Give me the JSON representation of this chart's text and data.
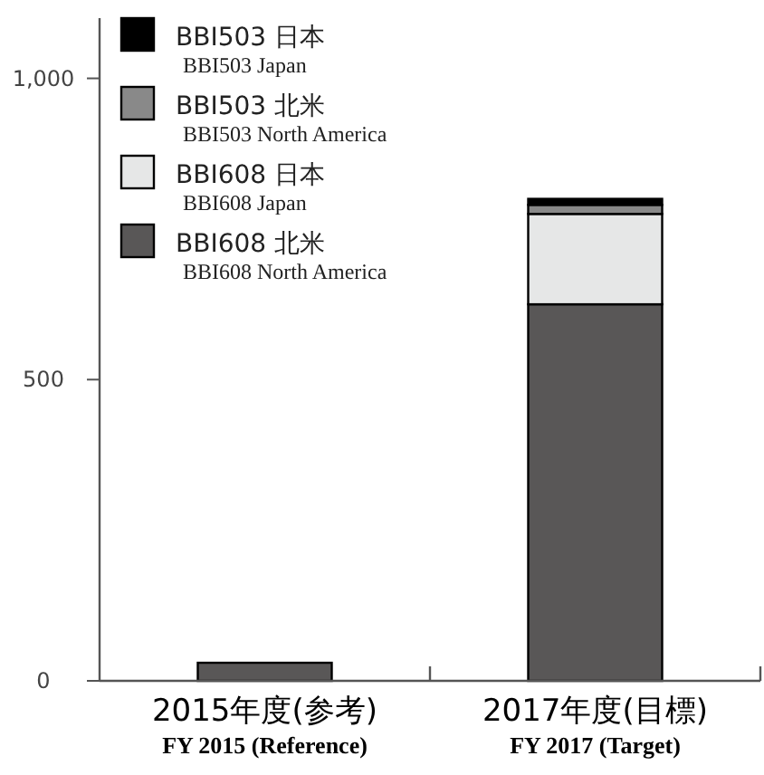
{
  "chart_data": {
    "type": "bar",
    "stacked": true,
    "categories": [
      "2015年度(参考)\nFY 2015 (Reference)",
      "2017年度(目標)\nFY 2017 (Target)"
    ],
    "series": [
      {
        "name": "BBI608 北米\nBBI608 North America",
        "color": "#595757",
        "values": [
          30,
          625
        ]
      },
      {
        "name": "BBI608 日本\nBBI608 Japan",
        "color": "#e6e7e7",
        "values": [
          0,
          150
        ]
      },
      {
        "name": "BBI503 北米\nBBI503 North America",
        "color": "#898989",
        "values": [
          0,
          15
        ]
      },
      {
        "name": "BBI503 日本\nBBI503 Japan",
        "color": "#000000",
        "values": [
          0,
          10
        ]
      }
    ],
    "ylim": [
      0,
      1100
    ],
    "yticks": [
      0,
      500,
      {
        "value": 1000,
        "label": "1,000"
      }
    ],
    "grid": false,
    "legend": "top left"
  }
}
